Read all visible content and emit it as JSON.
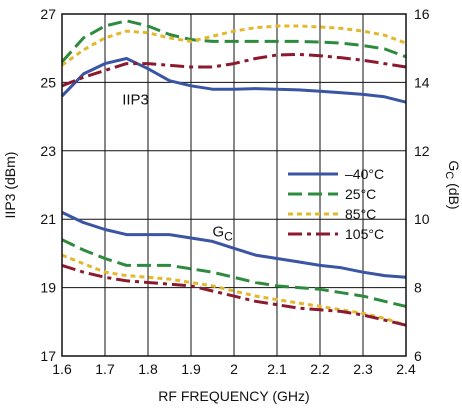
{
  "chart_data": {
    "type": "line",
    "title": "",
    "xlabel": "RF FREQUENCY (GHz)",
    "ylabel": "IIP3 (dBm)",
    "y2label": "G",
    "y2label_sub": "C",
    "y2label_unit": " (dB)",
    "xlim": [
      1.6,
      2.4
    ],
    "ylim": [
      17,
      27
    ],
    "y2lim": [
      6,
      16
    ],
    "grid": true,
    "legend_position": "right, middle",
    "x_ticks": [
      "1.6",
      "1.7",
      "1.8",
      "1.9",
      "2",
      "2.1",
      "2.2",
      "2.3",
      "2.4"
    ],
    "y_ticks": [
      "17",
      "19",
      "21",
      "23",
      "25",
      "27"
    ],
    "y2_ticks": [
      "6",
      "8",
      "10",
      "12",
      "14",
      "16"
    ],
    "annotations": {
      "iip3": "IIP3",
      "gc": "G",
      "gc_sub": "C"
    },
    "x": [
      1.6,
      1.65,
      1.7,
      1.75,
      1.8,
      1.85,
      1.9,
      1.95,
      2.0,
      2.05,
      2.1,
      2.15,
      2.2,
      2.25,
      2.3,
      2.35,
      2.4
    ],
    "series": [
      {
        "name": "–40°C",
        "color": "#3a55a4",
        "dash": "solid",
        "iip3": [
          24.6,
          25.25,
          25.55,
          25.7,
          25.4,
          25.05,
          24.9,
          24.8,
          24.8,
          24.82,
          24.8,
          24.78,
          24.74,
          24.7,
          24.65,
          24.58,
          24.42
        ],
        "gc": [
          10.2,
          9.9,
          9.7,
          9.55,
          9.55,
          9.55,
          9.45,
          9.35,
          9.15,
          8.95,
          8.85,
          8.75,
          8.65,
          8.58,
          8.45,
          8.35,
          8.3
        ]
      },
      {
        "name": "25°C",
        "color": "#2e8b3e",
        "dash": "long",
        "iip3": [
          25.6,
          26.3,
          26.65,
          26.8,
          26.65,
          26.4,
          26.25,
          26.2,
          26.2,
          26.2,
          26.2,
          26.2,
          26.18,
          26.15,
          26.08,
          25.98,
          25.75
        ],
        "gc": [
          9.4,
          9.1,
          8.85,
          8.65,
          8.65,
          8.65,
          8.55,
          8.45,
          8.3,
          8.15,
          8.05,
          8.0,
          7.95,
          7.85,
          7.75,
          7.6,
          7.45
        ]
      },
      {
        "name": "85°C",
        "color": "#e3b82c",
        "dash": "short",
        "iip3": [
          25.5,
          25.95,
          26.3,
          26.5,
          26.45,
          26.3,
          26.2,
          26.35,
          26.5,
          26.6,
          26.65,
          26.65,
          26.62,
          26.58,
          26.5,
          26.38,
          26.15
        ],
        "gc": [
          8.95,
          8.7,
          8.45,
          8.35,
          8.3,
          8.25,
          8.15,
          8.05,
          7.9,
          7.75,
          7.65,
          7.55,
          7.45,
          7.35,
          7.25,
          7.1,
          6.9
        ]
      },
      {
        "name": "105°C",
        "color": "#8b1a2e",
        "dash": "dashdot",
        "iip3": [
          24.9,
          25.15,
          25.35,
          25.55,
          25.55,
          25.5,
          25.45,
          25.45,
          25.55,
          25.7,
          25.8,
          25.82,
          25.78,
          25.72,
          25.65,
          25.55,
          25.45
        ],
        "gc": [
          8.65,
          8.45,
          8.3,
          8.2,
          8.15,
          8.1,
          8.05,
          7.9,
          7.75,
          7.6,
          7.5,
          7.4,
          7.35,
          7.3,
          7.2,
          7.05,
          6.9
        ]
      }
    ]
  }
}
